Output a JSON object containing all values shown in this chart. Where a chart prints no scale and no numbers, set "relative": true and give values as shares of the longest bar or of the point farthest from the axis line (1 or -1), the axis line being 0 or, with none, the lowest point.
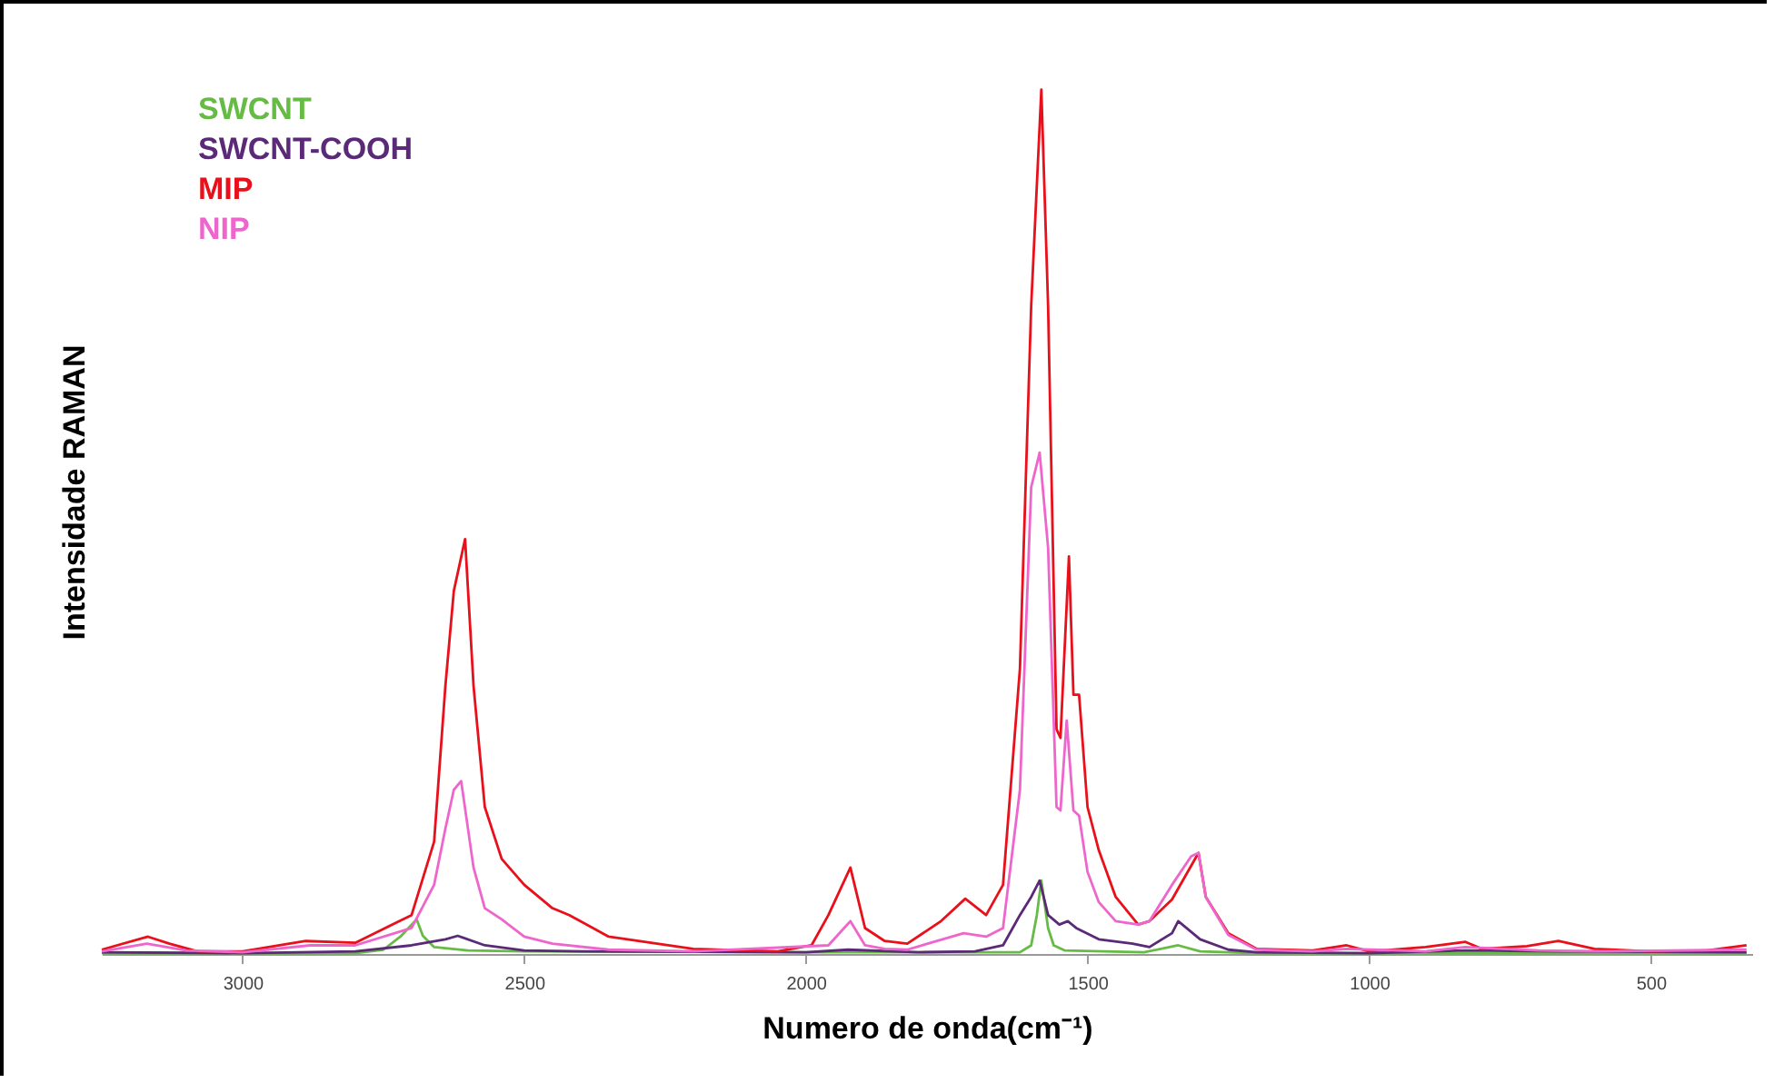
{
  "chart_data": {
    "type": "line",
    "relative": true,
    "xlabel": "Numero de onda(cm⁻¹)",
    "ylabel": "Intensidade RAMAN",
    "xlim": [
      3250,
      320
    ],
    "xticks": [
      3000,
      2500,
      2000,
      1500,
      1000,
      500
    ],
    "grid": false,
    "legend": "top left",
    "tick_labels": "x",
    "series": [
      {
        "name": "SWCNT",
        "color": "#66bb44",
        "x": [
          3250,
          2800,
          2750,
          2720,
          2691,
          2680,
          2660,
          2600,
          2500,
          2000,
          1620,
          1600,
          1590,
          1582,
          1570,
          1560,
          1540,
          1400,
          1339,
          1300,
          1200,
          330
        ],
        "values": [
          0.001,
          0.001,
          0.005,
          0.02,
          0.04,
          0.021,
          0.008,
          0.004,
          0.003,
          0.002,
          0.002,
          0.01,
          0.045,
          0.085,
          0.03,
          0.01,
          0.004,
          0.002,
          0.01,
          0.003,
          0.001,
          0.001
        ]
      },
      {
        "name": "SWCNT-COOH",
        "color": "#5a2a78",
        "x": [
          3250,
          3000,
          2800,
          2700,
          2640,
          2618,
          2570,
          2500,
          2400,
          2000,
          1925,
          1800,
          1700,
          1650,
          1620,
          1600,
          1585,
          1570,
          1550,
          1535,
          1520,
          1480,
          1420,
          1390,
          1350,
          1339,
          1300,
          1250,
          1200,
          1000,
          830,
          660,
          330
        ],
        "values": [
          0.002,
          0.001,
          0.003,
          0.01,
          0.017,
          0.021,
          0.01,
          0.004,
          0.003,
          0.002,
          0.005,
          0.002,
          0.003,
          0.01,
          0.045,
          0.066,
          0.085,
          0.045,
          0.034,
          0.038,
          0.03,
          0.017,
          0.012,
          0.008,
          0.024,
          0.038,
          0.017,
          0.005,
          0.002,
          0.001,
          0.004,
          0.003,
          0.002
        ]
      },
      {
        "name": "MIP",
        "color": "#e8101a",
        "x": [
          3250,
          3168,
          3130,
          3080,
          3000,
          2888,
          2800,
          2700,
          2660,
          2640,
          2625,
          2605,
          2590,
          2570,
          2540,
          2500,
          2450,
          2420,
          2350,
          2200,
          2050,
          1990,
          1960,
          1921,
          1895,
          1860,
          1820,
          1760,
          1717,
          1680,
          1650,
          1620,
          1600,
          1582,
          1570,
          1555,
          1548,
          1533,
          1525,
          1515,
          1500,
          1480,
          1450,
          1410,
          1390,
          1350,
          1303,
          1290,
          1250,
          1200,
          1100,
          1040,
          1000,
          900,
          829,
          800,
          720,
          664,
          600,
          500,
          400,
          330
        ],
        "values": [
          0.005,
          0.02,
          0.012,
          0.003,
          0.003,
          0.015,
          0.013,
          0.045,
          0.13,
          0.31,
          0.42,
          0.48,
          0.31,
          0.17,
          0.11,
          0.08,
          0.053,
          0.045,
          0.02,
          0.006,
          0.003,
          0.01,
          0.045,
          0.1,
          0.03,
          0.015,
          0.012,
          0.038,
          0.064,
          0.045,
          0.08,
          0.33,
          0.75,
          1,
          0.75,
          0.26,
          0.25,
          0.46,
          0.3,
          0.3,
          0.17,
          0.12,
          0.066,
          0.034,
          0.038,
          0.063,
          0.117,
          0.066,
          0.024,
          0.006,
          0.004,
          0.01,
          0.003,
          0.008,
          0.014,
          0.006,
          0.009,
          0.015,
          0.006,
          0.003,
          0.004,
          0.01
        ]
      },
      {
        "name": "NIP",
        "color": "#ee66cc",
        "x": [
          3250,
          3170,
          3100,
          3000,
          2880,
          2800,
          2700,
          2660,
          2640,
          2625,
          2612,
          2590,
          2570,
          2540,
          2500,
          2450,
          2350,
          2200,
          1960,
          1921,
          1895,
          1860,
          1820,
          1720,
          1680,
          1650,
          1620,
          1600,
          1585,
          1570,
          1555,
          1548,
          1537,
          1525,
          1515,
          1500,
          1480,
          1450,
          1410,
          1390,
          1350,
          1316,
          1303,
          1290,
          1250,
          1200,
          1100,
          1040,
          900,
          830,
          700,
          600,
          330
        ],
        "values": [
          0.003,
          0.012,
          0.004,
          0.002,
          0.01,
          0.01,
          0.03,
          0.08,
          0.145,
          0.19,
          0.2,
          0.1,
          0.053,
          0.04,
          0.02,
          0.012,
          0.005,
          0.003,
          0.01,
          0.038,
          0.01,
          0.006,
          0.005,
          0.024,
          0.02,
          0.03,
          0.19,
          0.54,
          0.58,
          0.47,
          0.17,
          0.166,
          0.27,
          0.166,
          0.16,
          0.095,
          0.06,
          0.038,
          0.034,
          0.038,
          0.08,
          0.113,
          0.117,
          0.066,
          0.022,
          0.005,
          0.003,
          0.006,
          0.003,
          0.008,
          0.004,
          0.003,
          0.005
        ]
      }
    ]
  }
}
